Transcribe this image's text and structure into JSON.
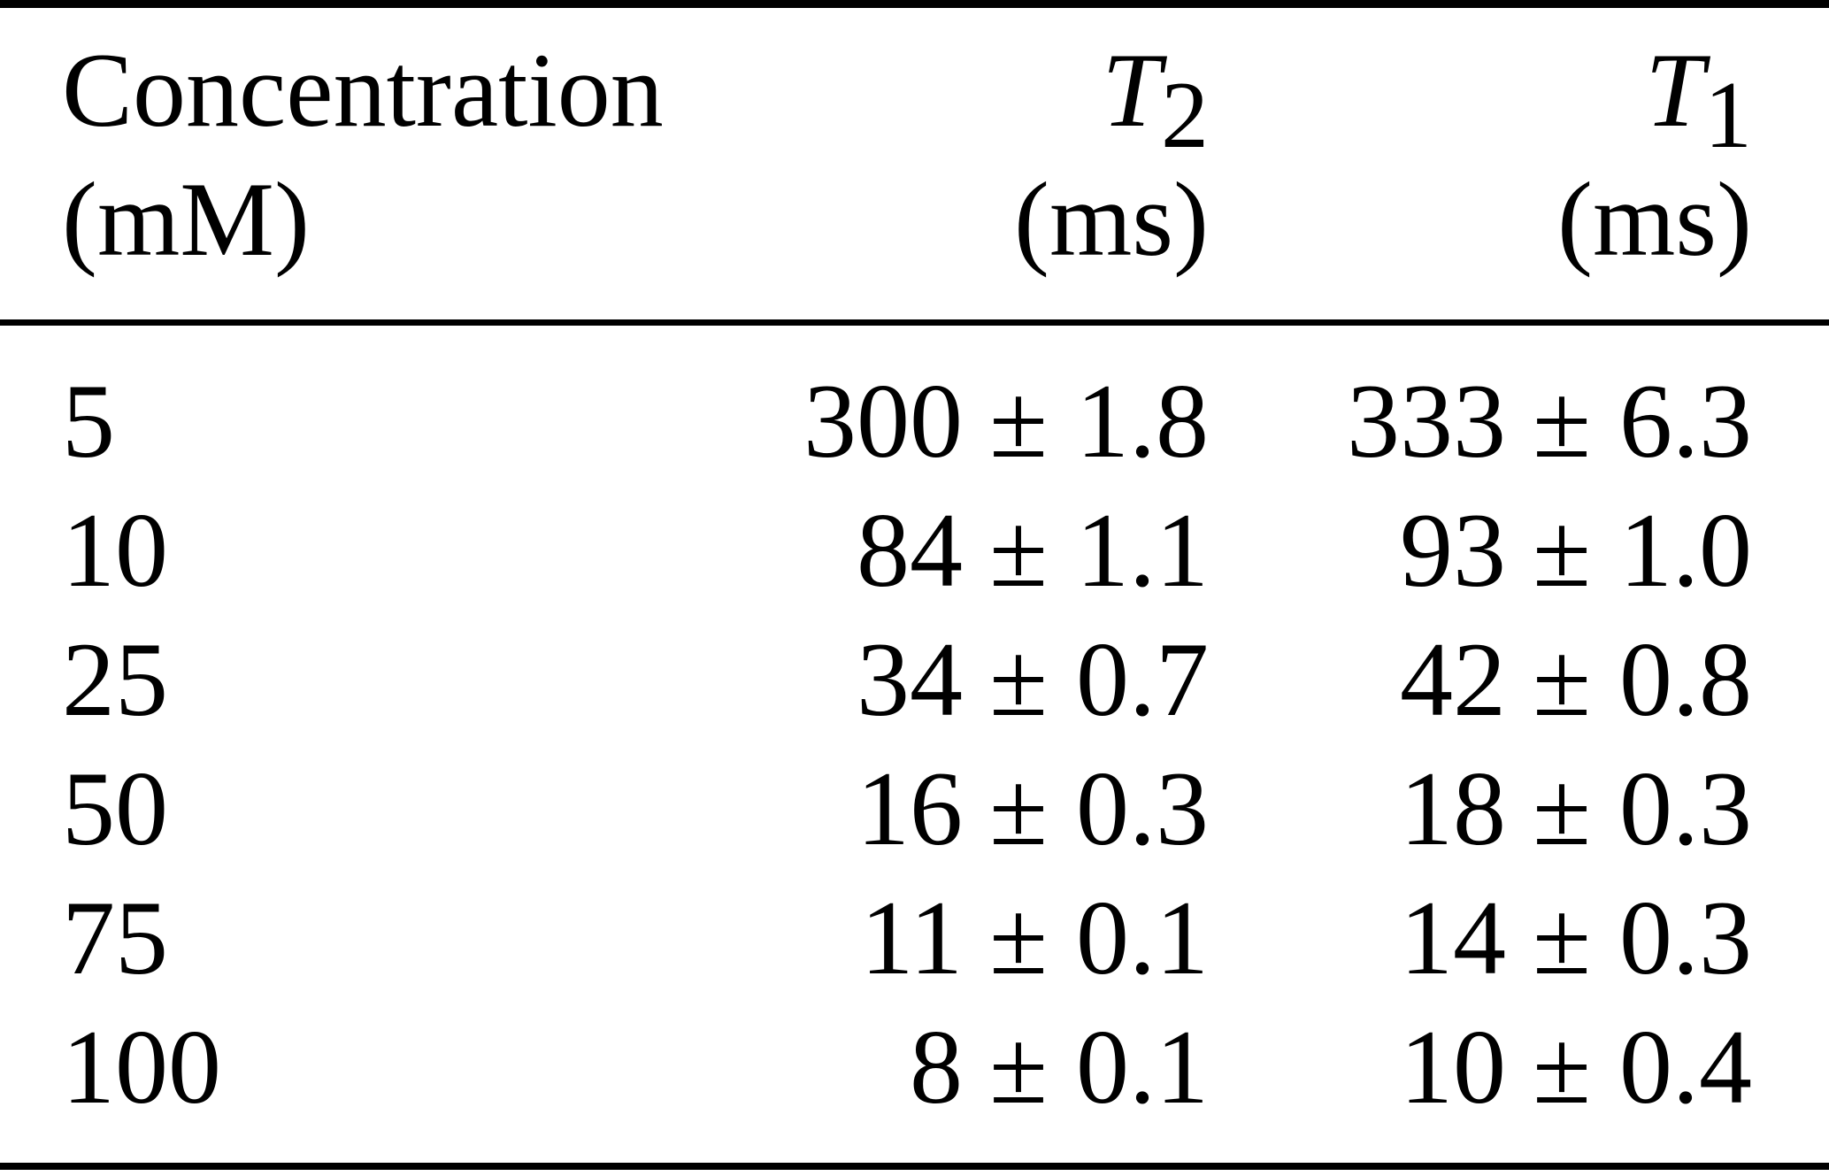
{
  "page": {
    "background_color": "#ffffff",
    "text_color": "#000000",
    "rule_color": "#000000"
  },
  "table": {
    "header": {
      "col1": {
        "line1": "Concentration",
        "line2": "(mM)"
      },
      "col2": {
        "symbol": "T",
        "subscript": "2",
        "unit": "(ms)"
      },
      "col3": {
        "symbol": "T",
        "subscript": "1",
        "unit": "(ms)"
      }
    },
    "pm": "±",
    "rows": [
      {
        "concentration": "5",
        "t2": {
          "value": "300",
          "uncertainty": "1.8"
        },
        "t1": {
          "value": "333",
          "uncertainty": "6.3"
        }
      },
      {
        "concentration": "10",
        "t2": {
          "value": "84",
          "uncertainty": "1.1"
        },
        "t1": {
          "value": "93",
          "uncertainty": "1.0"
        }
      },
      {
        "concentration": "25",
        "t2": {
          "value": "34",
          "uncertainty": "0.7"
        },
        "t1": {
          "value": "42",
          "uncertainty": "0.8"
        }
      },
      {
        "concentration": "50",
        "t2": {
          "value": "16",
          "uncertainty": "0.3"
        },
        "t1": {
          "value": "18",
          "uncertainty": "0.3"
        }
      },
      {
        "concentration": "75",
        "t2": {
          "value": "11",
          "uncertainty": "0.1"
        },
        "t1": {
          "value": "14",
          "uncertainty": "0.3"
        }
      },
      {
        "concentration": "100",
        "t2": {
          "value": "8",
          "uncertainty": "0.1"
        },
        "t1": {
          "value": "10",
          "uncertainty": "0.4"
        }
      }
    ]
  },
  "chart_data": {
    "type": "table",
    "columns": [
      "Concentration (mM)",
      "T2 (ms)",
      "T1 (ms)"
    ],
    "rows": [
      [
        "5",
        "300 ± 1.8",
        "333 ± 6.3"
      ],
      [
        "10",
        "84 ± 1.1",
        "93 ± 1.0"
      ],
      [
        "25",
        "34 ± 0.7",
        "42 ± 0.8"
      ],
      [
        "50",
        "16 ± 0.3",
        "18 ± 0.3"
      ],
      [
        "75",
        "11 ± 0.1",
        "14 ± 0.3"
      ],
      [
        "100",
        "8 ± 0.1",
        "10 ± 0.4"
      ]
    ]
  }
}
